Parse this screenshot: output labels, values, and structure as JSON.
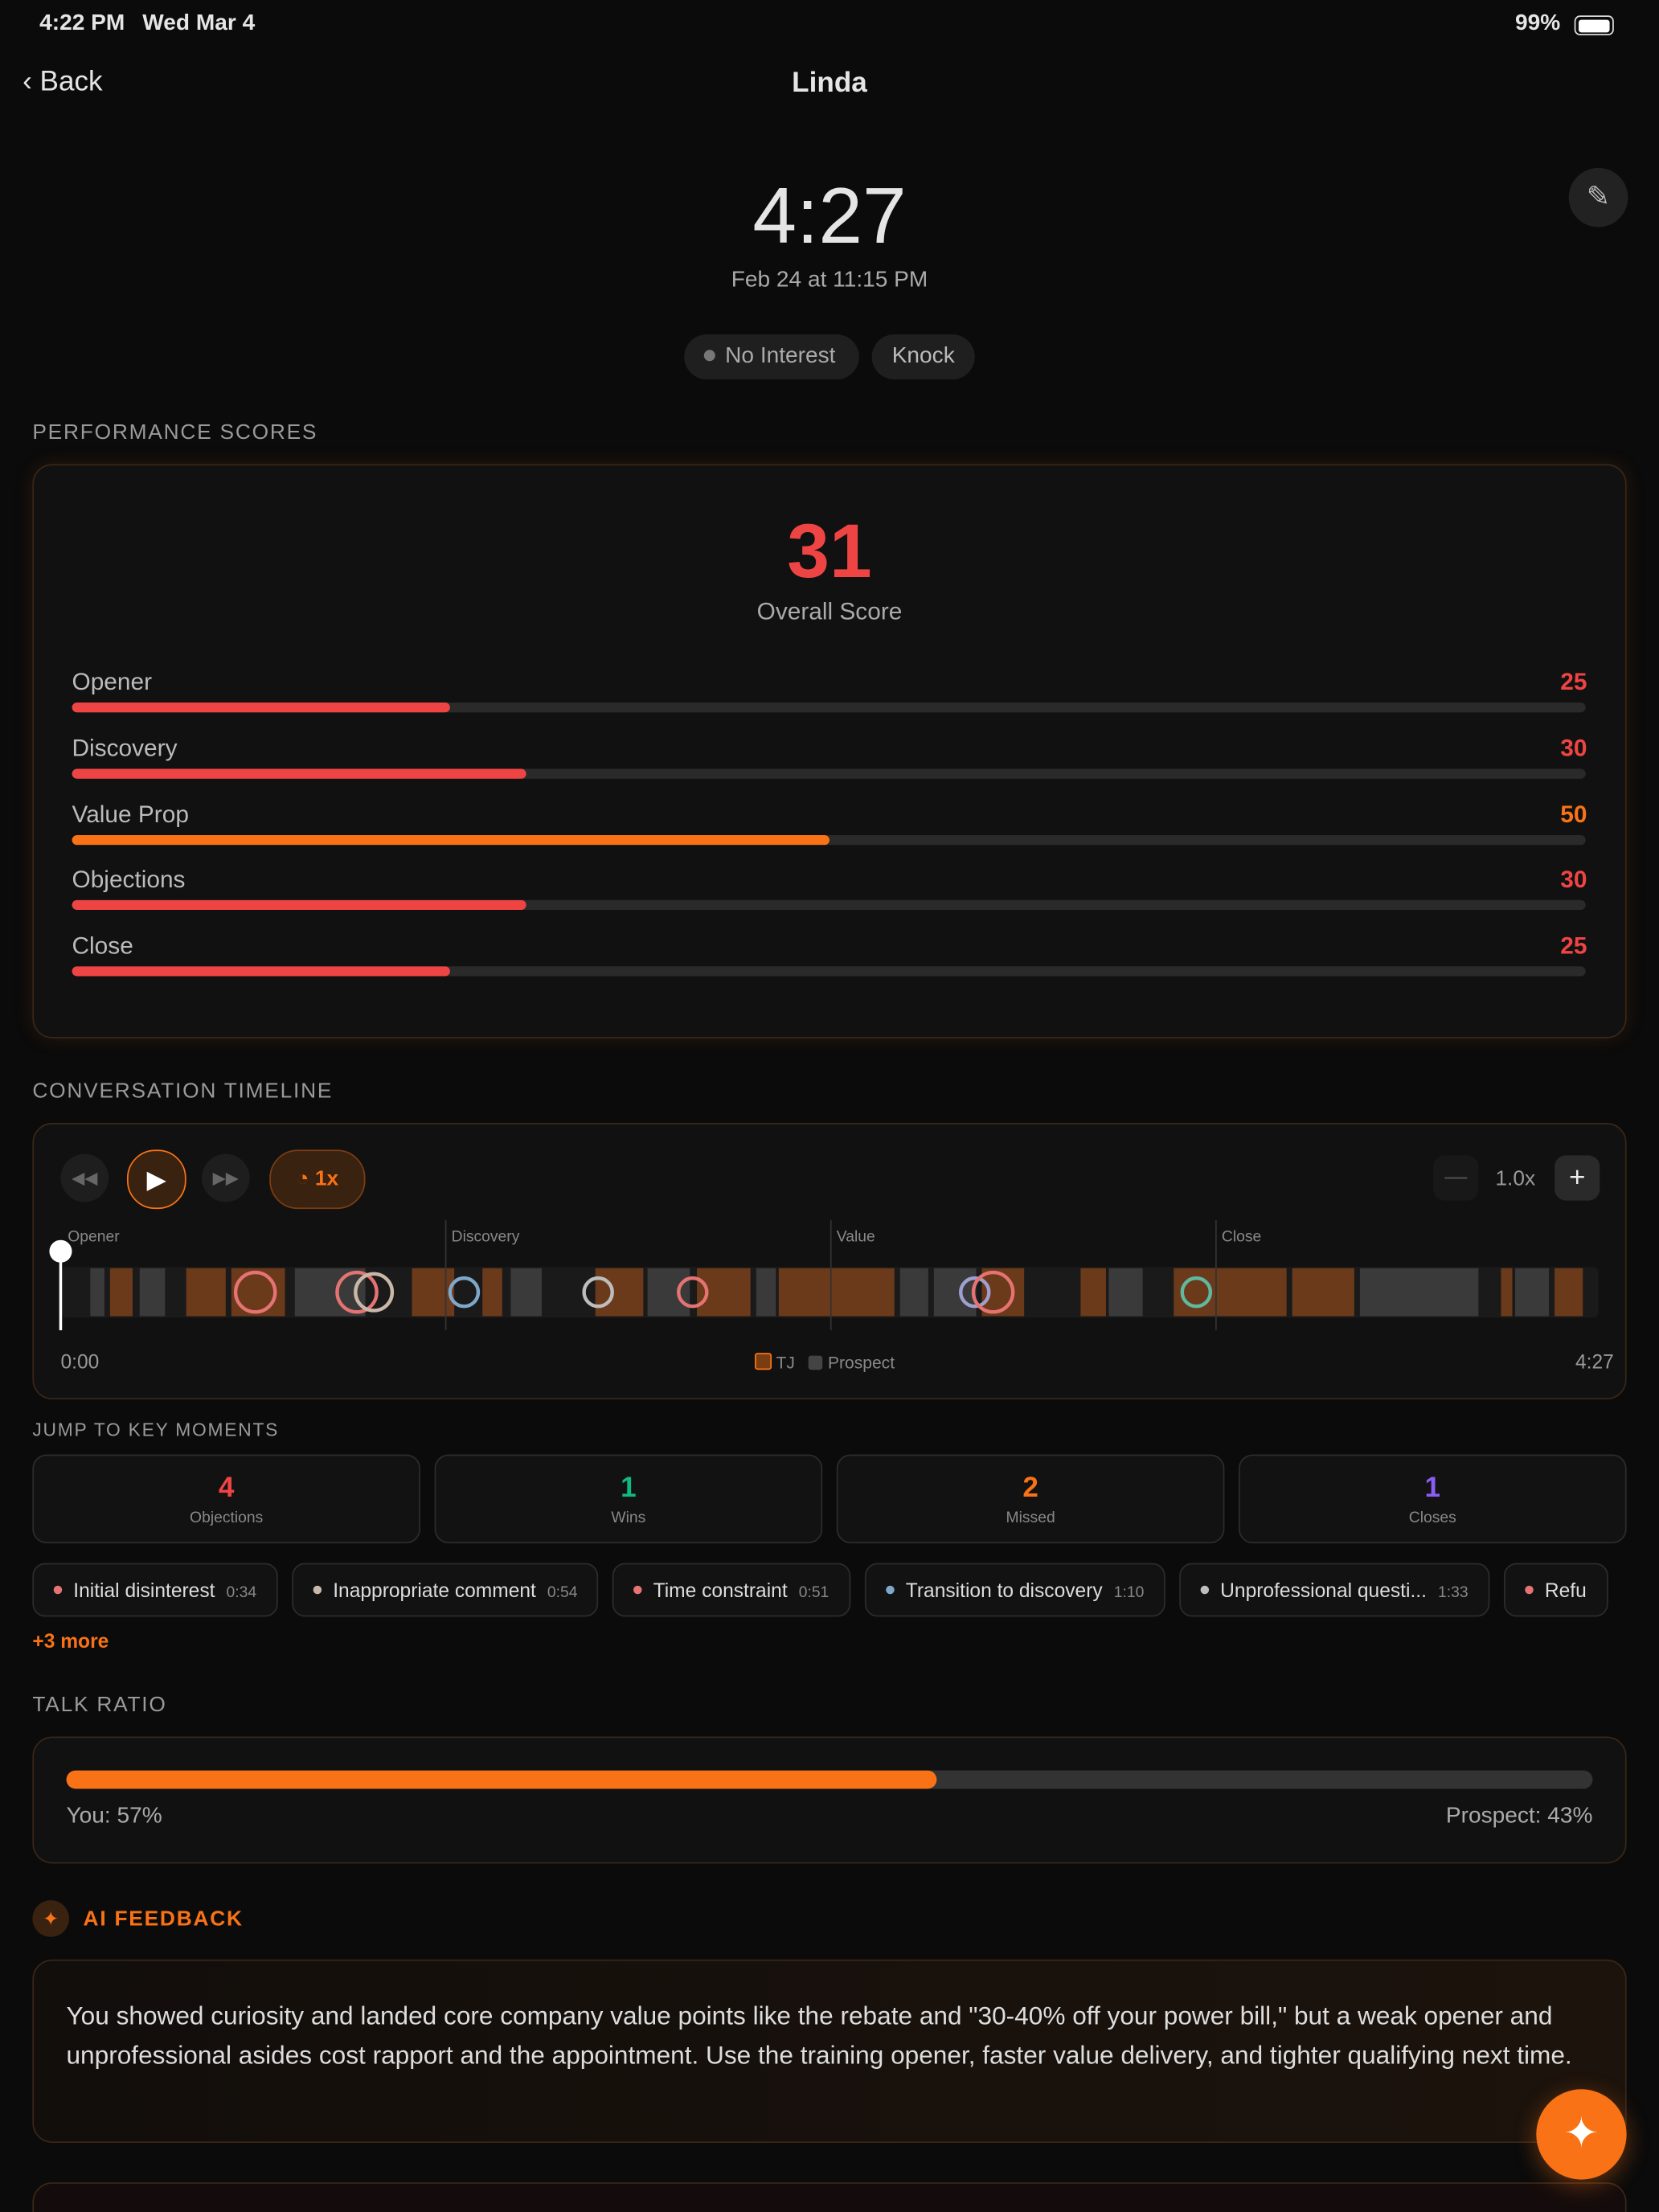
{
  "status_bar": {
    "time": "4:22 PM",
    "date": "Wed Mar 4",
    "battery": "99%"
  },
  "nav": {
    "back": "Back",
    "title": "Linda"
  },
  "header": {
    "duration": "4:27",
    "datetime": "Feb 24 at 11:15 PM",
    "tags": [
      "No Interest",
      "Knock"
    ]
  },
  "performance": {
    "title": "PERFORMANCE SCORES",
    "overall": 31,
    "overall_label": "Overall Score",
    "xlim": [
      0,
      100
    ],
    "categories": [
      "Opener",
      "Discovery",
      "Value Prop",
      "Objections",
      "Close"
    ],
    "values": [
      25,
      30,
      50,
      30,
      25
    ],
    "colors": [
      "#ef4444",
      "#ef4444",
      "#f97316",
      "#ef4444",
      "#ef4444"
    ]
  },
  "timeline": {
    "title": "CONVERSATION TIMELINE",
    "speed": "1x",
    "zoom": "1.0x",
    "phases": [
      "Opener",
      "Discovery",
      "Value",
      "Close"
    ],
    "start": "0:00",
    "end": "4:27",
    "legend": [
      "TJ",
      "Prospect"
    ]
  },
  "key_moments": {
    "title": "JUMP TO KEY MOMENTS",
    "cards": [
      {
        "count": 4,
        "label": "Objections",
        "color": "#ef4444"
      },
      {
        "count": 1,
        "label": "Wins",
        "color": "#10b981"
      },
      {
        "count": 2,
        "label": "Missed",
        "color": "#f97316"
      },
      {
        "count": 1,
        "label": "Closes",
        "color": "#8b5cf6"
      }
    ],
    "chips": [
      {
        "label": "Initial disinterest",
        "time": "0:34",
        "color": "#e57373"
      },
      {
        "label": "Inappropriate comment",
        "time": "0:54",
        "color": "#c9b8a8"
      },
      {
        "label": "Time constraint",
        "time": "0:51",
        "color": "#e57373"
      },
      {
        "label": "Transition to discovery",
        "time": "1:10",
        "color": "#7fa7c9"
      },
      {
        "label": "Unprofessional questi...",
        "time": "1:33",
        "color": "#bdbdbd"
      },
      {
        "label": "Refu",
        "time": "",
        "color": "#e57373"
      }
    ],
    "more": "+3 more"
  },
  "talk_ratio": {
    "title": "TALK RATIO",
    "labels": [
      "You: 57%",
      "Prospect: 43%"
    ],
    "values": [
      57,
      43
    ]
  },
  "ai_feedback": {
    "title": "AI FEEDBACK",
    "text": "You showed curiosity and landed core company value points like the rebate and \"30-40% off your power bill,\" but a weak opener and unprofessional asides cost rapport and the appointment. Use the training opener, faster value delivery, and tighter qualifying next time."
  }
}
